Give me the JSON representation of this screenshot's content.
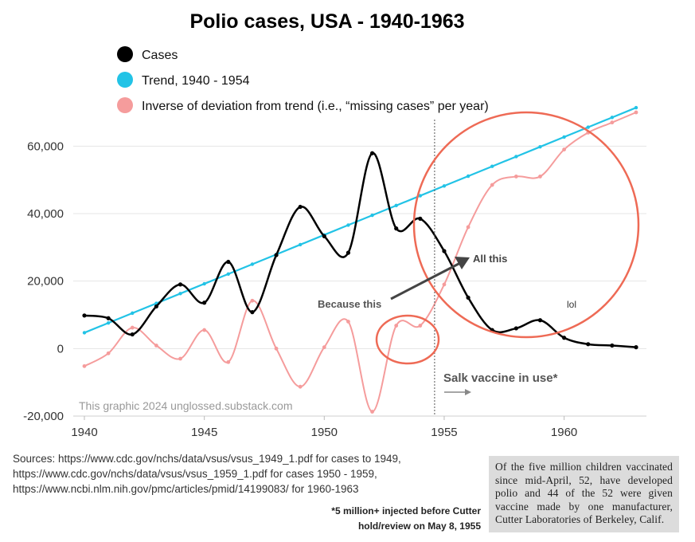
{
  "chart_data": {
    "type": "line",
    "title": "Polio cases, USA - 1940-1963",
    "xlabel": "",
    "ylabel": "",
    "xlim": [
      1940,
      1963
    ],
    "ylim": [
      -20000,
      70000
    ],
    "x_ticks": [
      "1940",
      "1945",
      "1950",
      "1955",
      "1960"
    ],
    "y_ticks": [
      "-20,000",
      "0",
      "20,000",
      "40,000",
      "60,000"
    ],
    "x_tick_values": [
      1940,
      1945,
      1950,
      1955,
      1960
    ],
    "y_tick_values": [
      -20000,
      0,
      20000,
      40000,
      60000
    ],
    "grid": "horizontal",
    "legend_position": "top-left",
    "x": [
      1940,
      1941,
      1942,
      1943,
      1944,
      1945,
      1946,
      1947,
      1948,
      1949,
      1950,
      1951,
      1952,
      1953,
      1954,
      1955,
      1956,
      1957,
      1958,
      1959,
      1960,
      1961,
      1962,
      1963
    ],
    "series": [
      {
        "name": "Cases",
        "color": "#000000",
        "values": [
          9800,
          9000,
          4200,
          12500,
          19000,
          13600,
          25700,
          10800,
          27700,
          42000,
          33300,
          28400,
          57900,
          35600,
          38500,
          28900,
          15100,
          5500,
          6000,
          8400,
          3200,
          1300,
          900,
          400
        ]
      },
      {
        "name": "Trend, 1940 - 1954",
        "color": "#22c3e6",
        "values": [
          4700,
          7600,
          10500,
          13400,
          16300,
          19200,
          22100,
          25000,
          27900,
          30800,
          33700,
          36600,
          39500,
          42400,
          45300,
          48200,
          51100,
          54000,
          56900,
          59800,
          62700,
          65600,
          68500,
          71400
        ]
      },
      {
        "name": "Inverse of deviation from trend (i.e., “missing cases” per year)",
        "color": "#f59c9c",
        "values": [
          -5200,
          -1400,
          6200,
          900,
          -3000,
          5500,
          -4000,
          14200,
          0,
          -11300,
          400,
          8000,
          -18700,
          6800,
          6800,
          19000,
          36000,
          48500,
          51000,
          51000,
          59000,
          64000,
          67000,
          70000
        ]
      }
    ],
    "annotations": {
      "vaccine_line_year": 1954.6,
      "vaccine_label": "Salk vaccine in use*",
      "because_label": "Because this",
      "all_label": "All this",
      "lol_label": "lol",
      "credit": "This graphic 2024 unglossed.substack.com"
    }
  },
  "sources": {
    "line1": "Sources: https://www.cdc.gov/nchs/data/vsus/vsus_1949_1.pdf for cases to 1949,",
    "line2": "https://www.cdc.gov/nchs/data/vsus/vsus_1959_1.pdf for cases 1950 - 1959,",
    "line3": "https://www.ncbi.nlm.nih.gov/pmc/articles/pmid/14199083/ for 1960-1963"
  },
  "footnote": {
    "line1": "*5 million+ injected before Cutter",
    "line2": "hold/review on May 8, 1955"
  },
  "clipping": {
    "text": "Of the five million children vaccinated since mid-April, 52, have developed polio and 44 of the 52 were given vaccine made by one manufacturer, Cutter Laboratories of Berkeley, Calif."
  }
}
